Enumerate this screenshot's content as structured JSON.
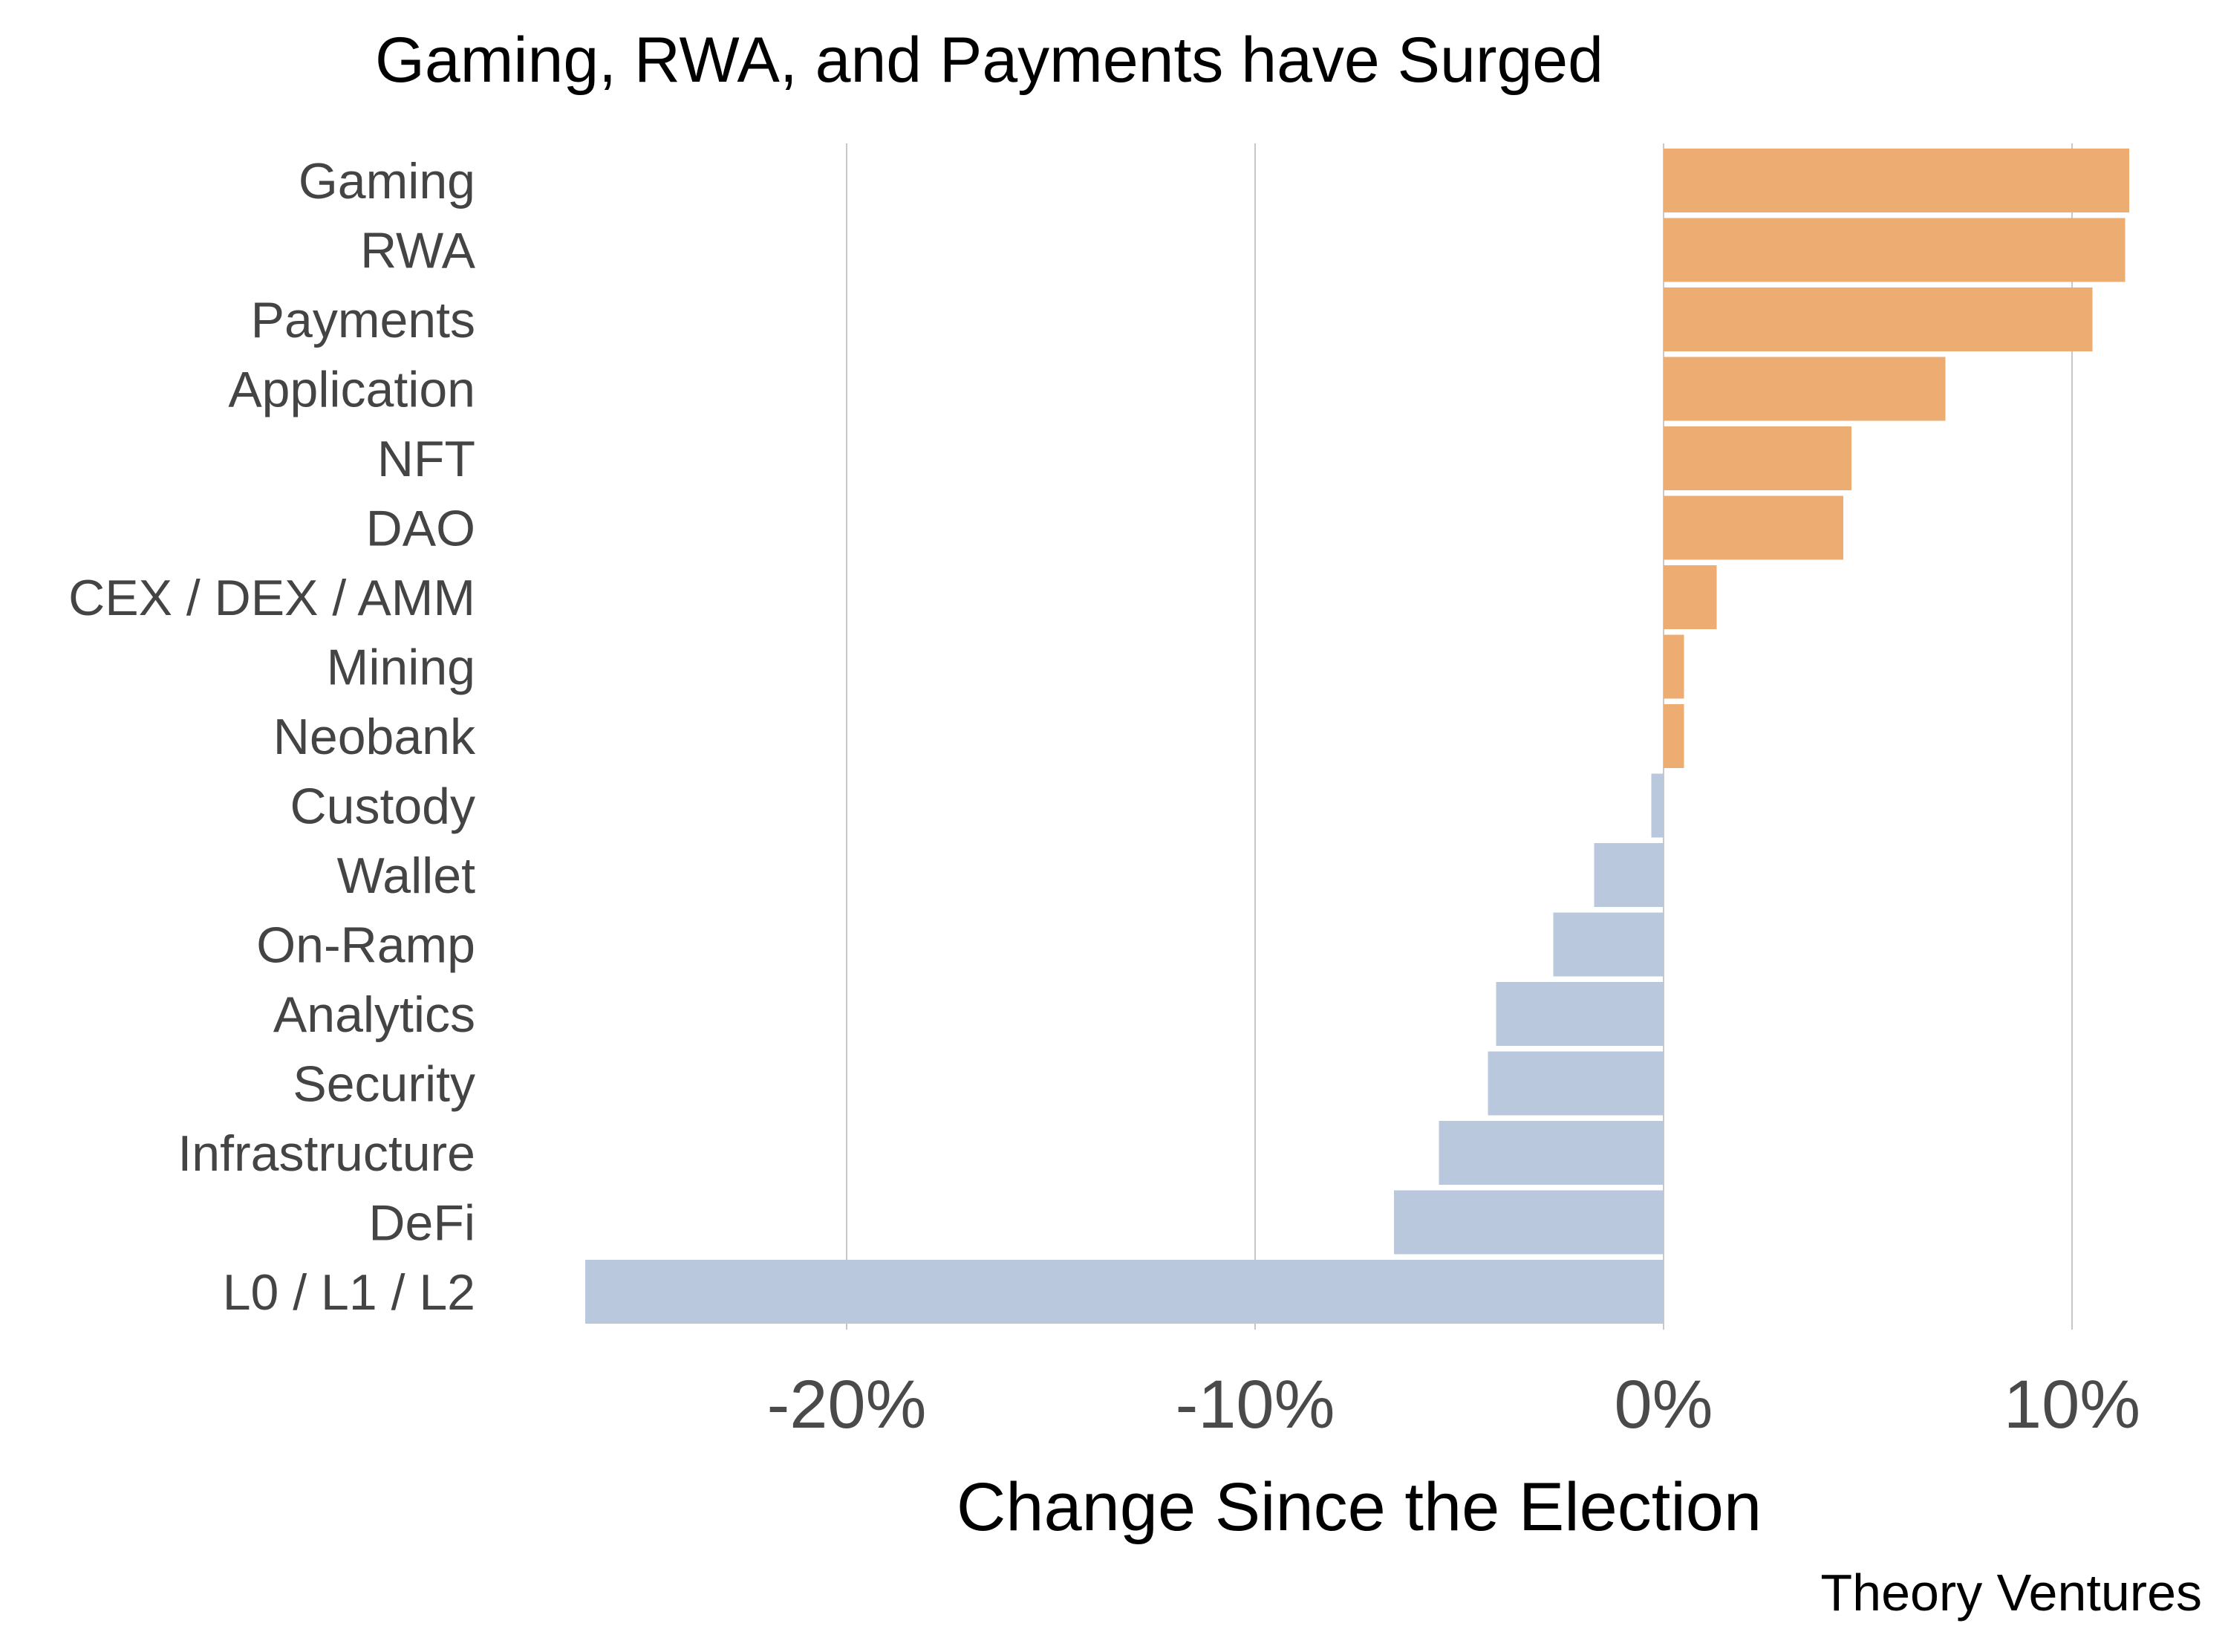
{
  "chart_data": {
    "type": "bar",
    "orientation": "horizontal",
    "title": "Gaming, RWA, and Payments have Surged",
    "xlabel": "Change Since the Election",
    "ylabel": "",
    "source": "Theory Ventures",
    "categories": [
      "Gaming",
      "RWA",
      "Payments",
      "Application",
      "NFT",
      "DAO",
      "CEX / DEX / AMM",
      "Mining",
      "Neobank",
      "Custody",
      "Wallet",
      "On-Ramp",
      "Analytics",
      "Security",
      "Infrastructure",
      "DeFi",
      "L0 / L1 / L2"
    ],
    "values": [
      11.4,
      11.3,
      10.5,
      6.9,
      4.6,
      4.4,
      1.3,
      0.5,
      0.5,
      -0.3,
      -1.7,
      -2.7,
      -4.1,
      -4.3,
      -5.5,
      -6.6,
      -26.4
    ],
    "xlim": [
      -27,
      12
    ],
    "xticks": [
      -20,
      -10,
      0,
      10
    ],
    "xtick_labels": [
      "-20%",
      "-10%",
      "0%",
      "10%"
    ],
    "grid": "vertical",
    "colors": {
      "positive": "#edac71",
      "negative": "#b9c8dc",
      "grid": "#c8c8c8"
    }
  }
}
